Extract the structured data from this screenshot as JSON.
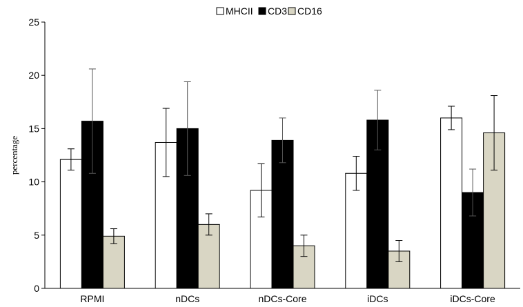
{
  "chart_data": {
    "type": "bar",
    "categories": [
      "RPMI",
      "nDCs",
      "nDCs-Core",
      "iDCs",
      "iDCs-Core"
    ],
    "series": [
      {
        "name": "MHCII",
        "color": "#ffffff",
        "values": [
          12.1,
          13.7,
          9.2,
          10.8,
          16.0
        ],
        "errors": [
          1.0,
          3.2,
          2.5,
          1.6,
          1.1
        ]
      },
      {
        "name": "CD3",
        "color": "#000000",
        "values": [
          15.7,
          15.0,
          13.9,
          15.8,
          9.0
        ],
        "errors": [
          4.9,
          4.4,
          2.1,
          2.8,
          2.2
        ]
      },
      {
        "name": "CD16",
        "color": "#d9d6c4",
        "values": [
          4.9,
          6.0,
          4.0,
          3.5,
          14.6
        ],
        "errors": [
          0.7,
          1.0,
          1.0,
          1.0,
          3.5
        ]
      }
    ],
    "ylabel": "percentage",
    "ylim": [
      0,
      25
    ],
    "yticks": [
      "0",
      "5",
      "10",
      "15",
      "20",
      "25"
    ],
    "legend": "top-center",
    "grid": false
  }
}
